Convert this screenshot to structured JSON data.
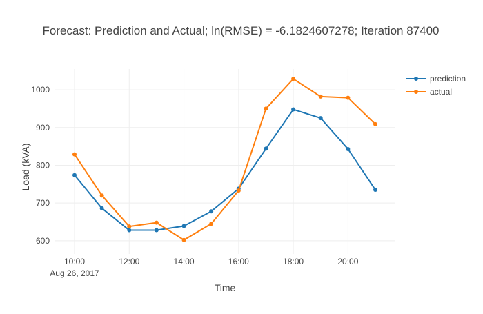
{
  "chart_data": {
    "type": "line",
    "title": "Forecast: Prediction and Actual; ln(RMSE) = -6.1824607278; Iteration 87400",
    "xlabel": "Time",
    "ylabel": "Load (kVA)",
    "x": [
      "10:00",
      "11:00",
      "12:00",
      "13:00",
      "14:00",
      "15:00",
      "16:00",
      "17:00",
      "18:00",
      "19:00",
      "20:00",
      "21:00"
    ],
    "x_ticks": [
      "10:00",
      "12:00",
      "14:00",
      "16:00",
      "18:00",
      "20:00"
    ],
    "x_date_label": "Aug 26, 2017",
    "y_ticks": [
      600,
      700,
      800,
      900,
      1000
    ],
    "ylim": [
      565,
      1055
    ],
    "grid": true,
    "legend_position": "top-right",
    "series": [
      {
        "name": "prediction",
        "color": "#1f77b4",
        "values": [
          774,
          686,
          628,
          628,
          639,
          678,
          738,
          844,
          948,
          925,
          843,
          735
        ]
      },
      {
        "name": "actual",
        "color": "#ff7f0e",
        "values": [
          829,
          720,
          638,
          648,
          602,
          645,
          733,
          950,
          1029,
          982,
          979,
          909
        ]
      }
    ]
  }
}
